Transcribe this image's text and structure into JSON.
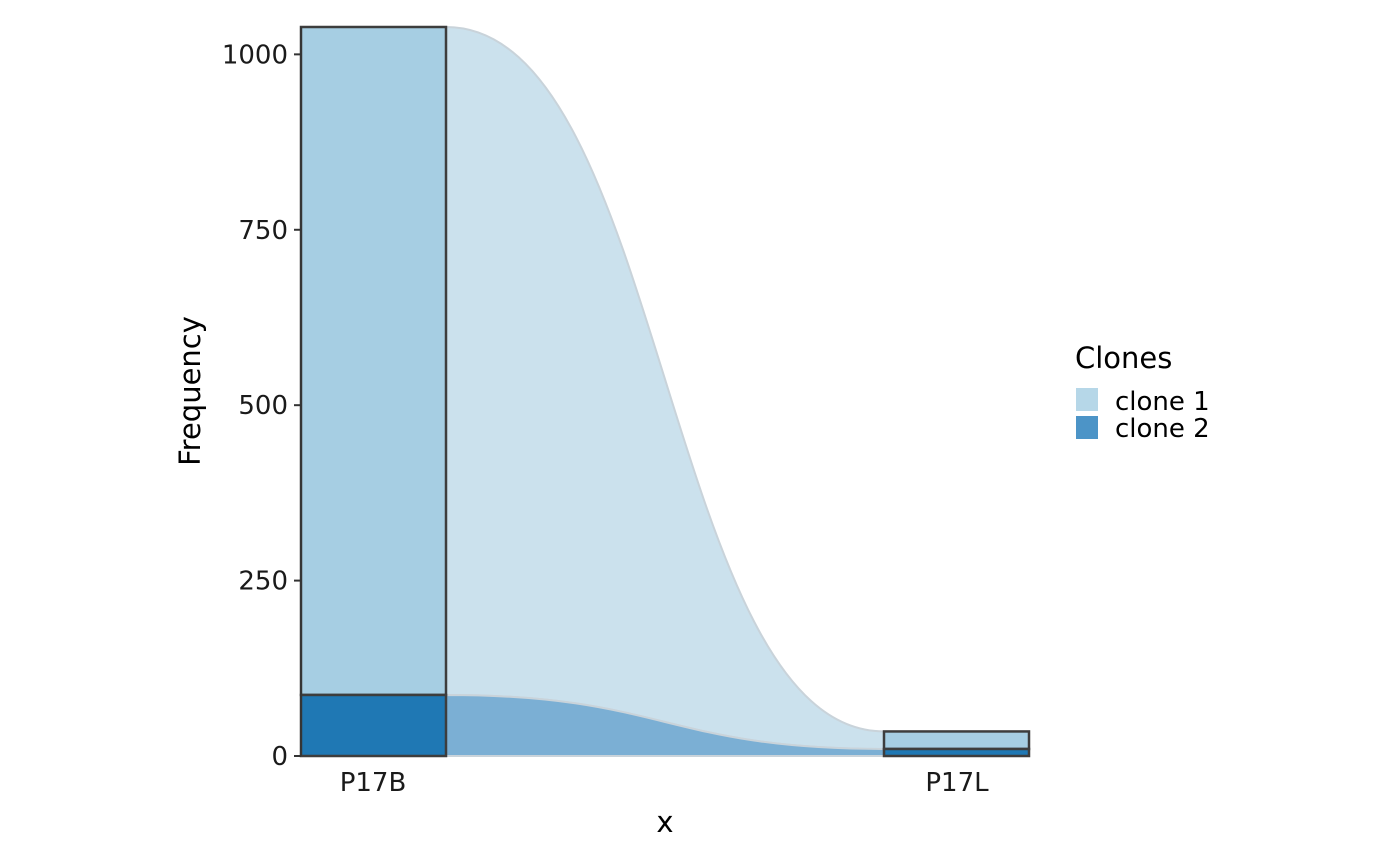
{
  "chart_data": {
    "type": "alluvial",
    "categories": [
      "P17B",
      "P17L"
    ],
    "series": [
      {
        "name": "clone 1",
        "values": [
          952,
          25
        ],
        "color": "#A6CEE3",
        "flow_color": "#cbe1ed"
      },
      {
        "name": "clone 2",
        "values": [
          87,
          10
        ],
        "color": "#1F78B4",
        "flow_color": "#7bafd4"
      }
    ],
    "xlabel": "x",
    "ylabel": "Frequency",
    "yticks": [
      0,
      250,
      500,
      750,
      1000
    ],
    "ylim": [
      0,
      1039
    ],
    "legend": {
      "title": "Clones",
      "position": "right",
      "items": [
        {
          "label": "clone 1",
          "color": "#B6D7E8"
        },
        {
          "label": "clone 2",
          "color": "#4C94C7"
        }
      ]
    },
    "grid": false
  }
}
